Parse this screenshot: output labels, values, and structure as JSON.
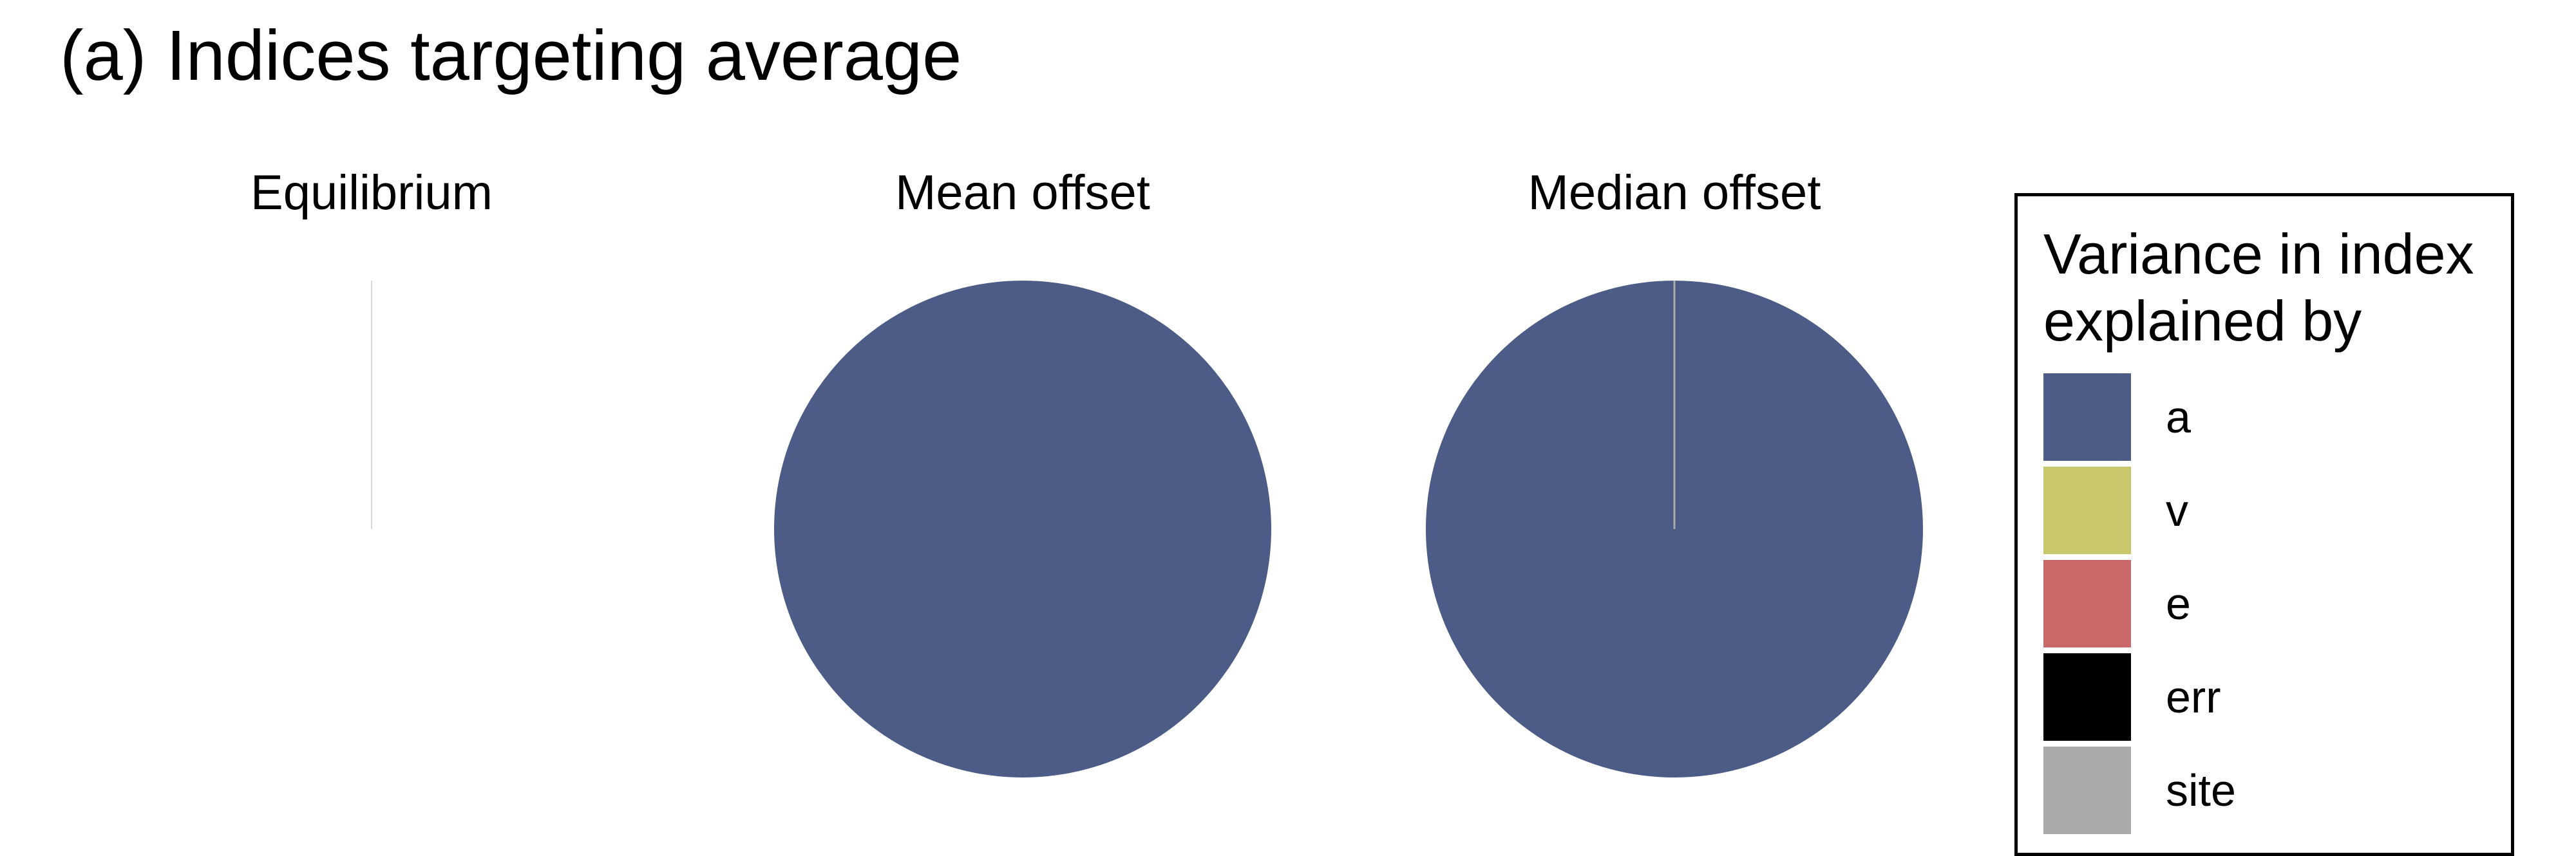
{
  "panel_title": "(a) Indices targeting average",
  "chart_data": {
    "type": "pie",
    "legend": {
      "title": "Variance in index explained by",
      "placement": "right",
      "entries": [
        {
          "name": "a",
          "color": "#4d5b87"
        },
        {
          "name": "v",
          "color": "#c9c76c"
        },
        {
          "name": "e",
          "color": "#c96868"
        },
        {
          "name": "err",
          "color": "#000000"
        },
        {
          "name": "site",
          "color": "#aaaaaa"
        }
      ]
    },
    "pies": [
      {
        "title": "Equilibrium",
        "slices": [
          {
            "name": "a",
            "value": 0
          },
          {
            "name": "v",
            "value": 0
          },
          {
            "name": "e",
            "value": 0
          },
          {
            "name": "err",
            "value": 0
          },
          {
            "name": "site",
            "value": 0
          }
        ]
      },
      {
        "title": "Mean offset",
        "slices": [
          {
            "name": "a",
            "value": 1.0
          },
          {
            "name": "v",
            "value": 0
          },
          {
            "name": "e",
            "value": 0
          },
          {
            "name": "err",
            "value": 0
          },
          {
            "name": "site",
            "value": 0
          }
        ]
      },
      {
        "title": "Median offset",
        "slices": [
          {
            "name": "a",
            "value": 0.9995
          },
          {
            "name": "v",
            "value": 0
          },
          {
            "name": "e",
            "value": 0
          },
          {
            "name": "err",
            "value": 0
          },
          {
            "name": "site",
            "value": 0.0005
          }
        ]
      }
    ]
  }
}
